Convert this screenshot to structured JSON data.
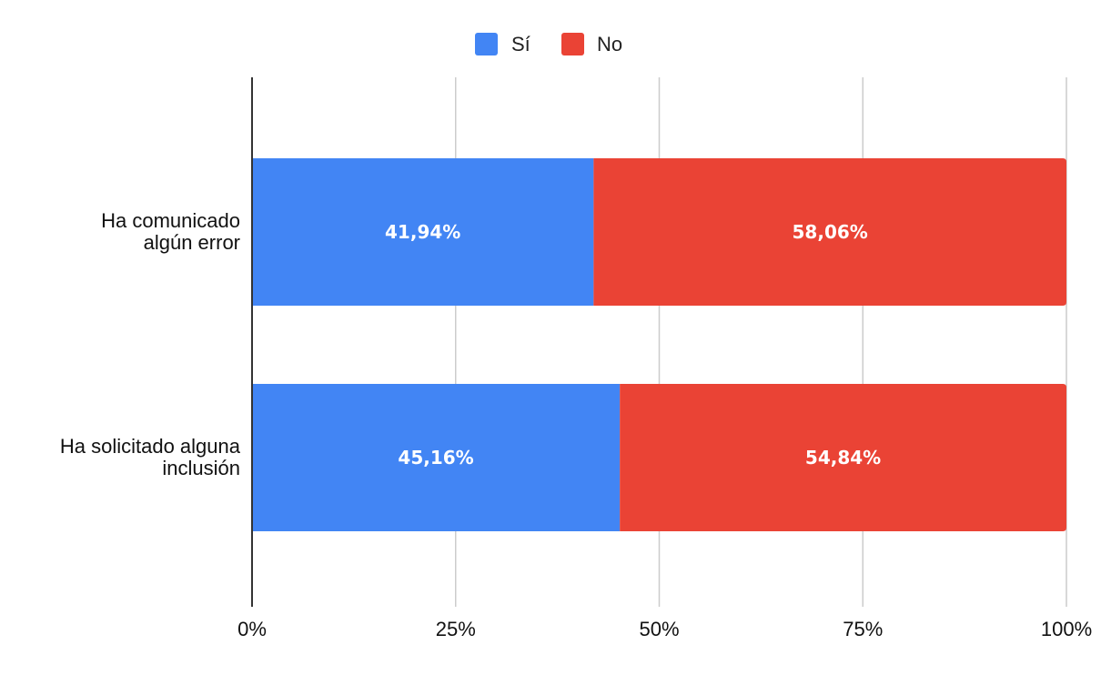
{
  "chart_data": {
    "type": "bar",
    "orientation": "horizontal",
    "stacked": true,
    "title": "",
    "xlabel": "",
    "ylabel": "",
    "xlim": [
      0,
      100
    ],
    "grid": true,
    "legend_position": "top-center",
    "categories": [
      [
        "Ha comunicado",
        "algún error"
      ],
      [
        "Ha solicitado alguna",
        "inclusión"
      ]
    ],
    "series": [
      {
        "name": "Sí",
        "color": "#4285F4",
        "values": [
          41.94,
          45.16
        ],
        "labels": [
          "41,94%",
          "45,16%"
        ]
      },
      {
        "name": "No",
        "color": "#EA4335",
        "values": [
          58.06,
          54.84
        ],
        "labels": [
          "58,06%",
          "54,84%"
        ]
      }
    ],
    "ticks": [
      {
        "value": 0,
        "label": "0%"
      },
      {
        "value": 25,
        "label": "25%"
      },
      {
        "value": 50,
        "label": "50%"
      },
      {
        "value": 75,
        "label": "75%"
      },
      {
        "value": 100,
        "label": "100%"
      }
    ]
  }
}
